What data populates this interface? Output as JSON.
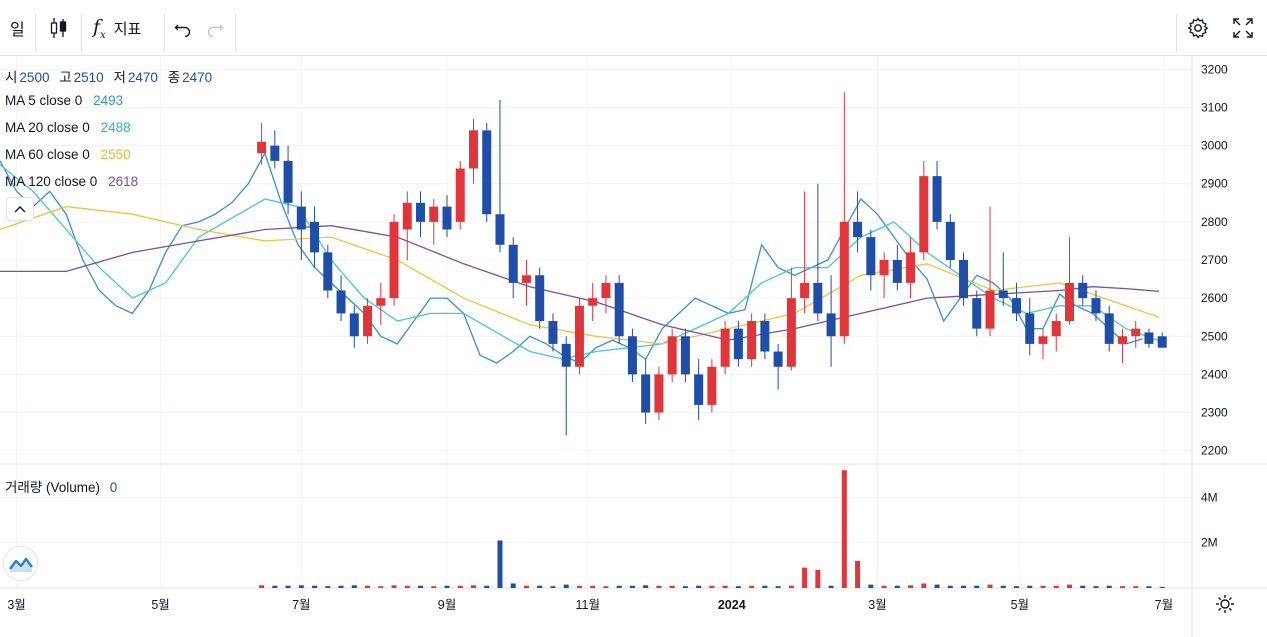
{
  "toolbar": {
    "interval": "일",
    "indicators_label": "지표"
  },
  "ohlc": {
    "open_label": "시",
    "open": "2500",
    "high_label": "고",
    "high": "2510",
    "low_label": "저",
    "low": "2470",
    "close_label": "종",
    "close": "2470"
  },
  "ma_legends": [
    {
      "label": "MA 5 close 0",
      "value": "2493",
      "color": "#3a8fd1"
    },
    {
      "label": "MA 20 close 0",
      "value": "2488",
      "color": "#2ab3d6"
    },
    {
      "label": "MA 60 close 0",
      "value": "2550",
      "color": "#e8b73a"
    },
    {
      "label": "MA 120 close 0",
      "value": "2618",
      "color": "#7e4fa1"
    }
  ],
  "volume_legend": {
    "label": "거래량 (Volume)",
    "value": "0"
  },
  "colors": {
    "up": "#e0353b",
    "down": "#1f4da8",
    "ma5": "#3a8fd1",
    "ma20": "#4cc3dd",
    "ma60": "#f0c43c",
    "ma120": "#7e4fa1",
    "grid": "#f0f3fa"
  },
  "chart_data": {
    "type": "line",
    "title": "",
    "price_axis": {
      "ticks": [
        2200,
        2300,
        2400,
        2500,
        2600,
        2700,
        2800,
        2900,
        3000,
        3100,
        3200
      ],
      "ylim": [
        2165,
        3235
      ]
    },
    "volume_axis": {
      "ticks": [
        "2M",
        "4M"
      ],
      "tick_values": [
        2,
        4
      ],
      "ylim": [
        0,
        5.3
      ]
    },
    "x_ticks": [
      "3월",
      "5월",
      "7월",
      "9월",
      "11월",
      "2024",
      "3월",
      "5월",
      "7월"
    ],
    "x_tick_positions": [
      1,
      9.7,
      18.2,
      27,
      35.5,
      44.2,
      53,
      61.6,
      70.3
    ],
    "xlim": [
      0,
      72
    ],
    "series": [
      {
        "name": "MA 5",
        "x": [
          0,
          1,
          2,
          3,
          4,
          5,
          6,
          7,
          8,
          9,
          10,
          11,
          12,
          13,
          14,
          15,
          16,
          17,
          18,
          19,
          20,
          21,
          22,
          23,
          24,
          25,
          26,
          27,
          28,
          29,
          30,
          31,
          32,
          33,
          34,
          35,
          36,
          37,
          38,
          39,
          40,
          41,
          42,
          43,
          44,
          45,
          46,
          47,
          48,
          49,
          50,
          51,
          52,
          53,
          54,
          55,
          56,
          57,
          58,
          59,
          60,
          61,
          62,
          63,
          64,
          65,
          66,
          67,
          68,
          69
        ],
        "y": [
          2960,
          2880,
          2840,
          2880,
          2820,
          2700,
          2620,
          2580,
          2560,
          2620,
          2720,
          2790,
          2800,
          2820,
          2850,
          2900,
          2980,
          2850,
          2740,
          2680,
          2640,
          2600,
          2560,
          2500,
          2480,
          2540,
          2600,
          2600,
          2560,
          2450,
          2430,
          2460,
          2500,
          2480,
          2450,
          2430,
          2470,
          2490,
          2470,
          2440,
          2520,
          2560,
          2600,
          2580,
          2560,
          2570,
          2740,
          2680,
          2660,
          2680,
          2700,
          2780,
          2860,
          2820,
          2760,
          2700,
          2650,
          2540,
          2600,
          2660,
          2640,
          2600,
          2520,
          2520,
          2610,
          2580,
          2560,
          2520,
          2480,
          2493
        ]
      },
      {
        "name": "MA 20",
        "x": [
          0,
          2,
          4,
          6,
          8,
          10,
          12,
          14,
          16,
          18,
          20,
          22,
          24,
          26,
          28,
          30,
          32,
          34,
          36,
          38,
          40,
          42,
          44,
          46,
          48,
          50,
          52,
          54,
          56,
          58,
          60,
          62,
          64,
          66,
          68,
          70
        ],
        "y": [
          2950,
          2880,
          2780,
          2680,
          2600,
          2640,
          2760,
          2810,
          2860,
          2840,
          2700,
          2600,
          2540,
          2560,
          2560,
          2510,
          2460,
          2440,
          2460,
          2470,
          2480,
          2520,
          2560,
          2640,
          2680,
          2680,
          2760,
          2800,
          2720,
          2660,
          2600,
          2560,
          2580,
          2580,
          2520,
          2488
        ]
      },
      {
        "name": "MA 60",
        "x": [
          0,
          4,
          8,
          12,
          16,
          20,
          24,
          28,
          32,
          36,
          40,
          44,
          48,
          52,
          56,
          60,
          64,
          68,
          70
        ],
        "y": [
          2780,
          2840,
          2820,
          2780,
          2750,
          2760,
          2700,
          2600,
          2530,
          2500,
          2480,
          2520,
          2560,
          2660,
          2690,
          2620,
          2640,
          2580,
          2550
        ]
      },
      {
        "name": "MA 120",
        "x": [
          0,
          4,
          8,
          12,
          16,
          20,
          24,
          28,
          32,
          36,
          40,
          44,
          48,
          52,
          56,
          60,
          64,
          66,
          68,
          70
        ],
        "y": [
          2670,
          2670,
          2720,
          2750,
          2780,
          2790,
          2760,
          2690,
          2630,
          2590,
          2530,
          2490,
          2520,
          2560,
          2600,
          2610,
          2620,
          2630,
          2625,
          2618
        ]
      }
    ],
    "candles": [
      {
        "x": 0.3,
        "o": 2980,
        "h": 3060,
        "l": 2950,
        "c": 3010
      },
      {
        "x": 1.1,
        "o": 3000,
        "h": 3040,
        "l": 2940,
        "c": 2960
      },
      {
        "x": 1.9,
        "o": 2960,
        "h": 3000,
        "l": 2820,
        "c": 2850
      },
      {
        "x": 2.7,
        "o": 2840,
        "h": 2880,
        "l": 2700,
        "c": 2780
      },
      {
        "x": 3.5,
        "o": 2800,
        "h": 2840,
        "l": 2680,
        "c": 2720
      },
      {
        "x": 4.3,
        "o": 2720,
        "h": 2740,
        "l": 2600,
        "c": 2620
      },
      {
        "x": 5.1,
        "o": 2620,
        "h": 2660,
        "l": 2540,
        "c": 2560
      },
      {
        "x": 5.9,
        "o": 2560,
        "h": 2580,
        "l": 2470,
        "c": 2500
      },
      {
        "x": 6.7,
        "o": 2500,
        "h": 2600,
        "l": 2480,
        "c": 2580
      },
      {
        "x": 7.5,
        "o": 2580,
        "h": 2640,
        "l": 2530,
        "c": 2600
      },
      {
        "x": 8.3,
        "o": 2600,
        "h": 2820,
        "l": 2580,
        "c": 2800
      },
      {
        "x": 9.1,
        "o": 2780,
        "h": 2880,
        "l": 2700,
        "c": 2850
      },
      {
        "x": 9.9,
        "o": 2850,
        "h": 2880,
        "l": 2760,
        "c": 2800
      },
      {
        "x": 10.7,
        "o": 2800,
        "h": 2860,
        "l": 2740,
        "c": 2840
      },
      {
        "x": 11.5,
        "o": 2840,
        "h": 2870,
        "l": 2760,
        "c": 2780
      },
      {
        "x": 12.3,
        "o": 2800,
        "h": 2960,
        "l": 2780,
        "c": 2940
      },
      {
        "x": 13.1,
        "o": 2940,
        "h": 3070,
        "l": 2900,
        "c": 3040
      },
      {
        "x": 13.9,
        "o": 3040,
        "h": 3060,
        "l": 2800,
        "c": 2820
      },
      {
        "x": 14.7,
        "o": 2820,
        "h": 3120,
        "l": 2720,
        "c": 2740
      },
      {
        "x": 15.5,
        "o": 2740,
        "h": 2760,
        "l": 2600,
        "c": 2640
      },
      {
        "x": 16.3,
        "o": 2640,
        "h": 2700,
        "l": 2580,
        "c": 2660
      },
      {
        "x": 17.1,
        "o": 2660,
        "h": 2680,
        "l": 2520,
        "c": 2540
      },
      {
        "x": 17.9,
        "o": 2540,
        "h": 2560,
        "l": 2460,
        "c": 2480
      },
      {
        "x": 18.7,
        "o": 2480,
        "h": 2500,
        "l": 2240,
        "c": 2420
      },
      {
        "x": 19.5,
        "o": 2420,
        "h": 2600,
        "l": 2400,
        "c": 2580
      },
      {
        "x": 20.3,
        "o": 2580,
        "h": 2640,
        "l": 2540,
        "c": 2600
      },
      {
        "x": 21.1,
        "o": 2600,
        "h": 2660,
        "l": 2560,
        "c": 2640
      },
      {
        "x": 21.9,
        "o": 2640,
        "h": 2660,
        "l": 2480,
        "c": 2500
      },
      {
        "x": 22.7,
        "o": 2500,
        "h": 2520,
        "l": 2380,
        "c": 2400
      },
      {
        "x": 23.5,
        "o": 2400,
        "h": 2440,
        "l": 2270,
        "c": 2300
      },
      {
        "x": 24.3,
        "o": 2300,
        "h": 2420,
        "l": 2280,
        "c": 2400
      },
      {
        "x": 25.1,
        "o": 2400,
        "h": 2520,
        "l": 2380,
        "c": 2500
      },
      {
        "x": 25.9,
        "o": 2500,
        "h": 2520,
        "l": 2380,
        "c": 2400
      },
      {
        "x": 26.7,
        "o": 2400,
        "h": 2440,
        "l": 2280,
        "c": 2320
      },
      {
        "x": 27.5,
        "o": 2320,
        "h": 2440,
        "l": 2300,
        "c": 2420
      },
      {
        "x": 28.3,
        "o": 2420,
        "h": 2540,
        "l": 2400,
        "c": 2520
      },
      {
        "x": 29.1,
        "o": 2520,
        "h": 2540,
        "l": 2420,
        "c": 2440
      },
      {
        "x": 29.9,
        "o": 2440,
        "h": 2560,
        "l": 2420,
        "c": 2540
      },
      {
        "x": 30.7,
        "o": 2540,
        "h": 2560,
        "l": 2440,
        "c": 2460
      },
      {
        "x": 31.5,
        "o": 2460,
        "h": 2480,
        "l": 2360,
        "c": 2420
      },
      {
        "x": 32.3,
        "o": 2420,
        "h": 2680,
        "l": 2410,
        "c": 2600
      },
      {
        "x": 33.1,
        "o": 2600,
        "h": 2880,
        "l": 2560,
        "c": 2640
      },
      {
        "x": 33.9,
        "o": 2640,
        "h": 2900,
        "l": 2540,
        "c": 2560
      },
      {
        "x": 34.7,
        "o": 2560,
        "h": 2660,
        "l": 2420,
        "c": 2500
      },
      {
        "x": 35.5,
        "o": 2500,
        "h": 3140,
        "l": 2480,
        "c": 2800
      },
      {
        "x": 36.3,
        "o": 2800,
        "h": 2880,
        "l": 2720,
        "c": 2760
      },
      {
        "x": 37.1,
        "o": 2760,
        "h": 2780,
        "l": 2620,
        "c": 2660
      },
      {
        "x": 37.9,
        "o": 2660,
        "h": 2720,
        "l": 2600,
        "c": 2700
      },
      {
        "x": 38.7,
        "o": 2700,
        "h": 2740,
        "l": 2620,
        "c": 2640
      },
      {
        "x": 39.5,
        "o": 2640,
        "h": 2760,
        "l": 2600,
        "c": 2720
      },
      {
        "x": 40.3,
        "o": 2720,
        "h": 2960,
        "l": 2700,
        "c": 2920
      },
      {
        "x": 41.1,
        "o": 2920,
        "h": 2960,
        "l": 2780,
        "c": 2800
      },
      {
        "x": 41.9,
        "o": 2800,
        "h": 2820,
        "l": 2680,
        "c": 2700
      },
      {
        "x": 42.7,
        "o": 2700,
        "h": 2720,
        "l": 2580,
        "c": 2600
      },
      {
        "x": 43.5,
        "o": 2600,
        "h": 2620,
        "l": 2500,
        "c": 2520
      },
      {
        "x": 44.3,
        "o": 2520,
        "h": 2840,
        "l": 2500,
        "c": 2620
      },
      {
        "x": 45.1,
        "o": 2620,
        "h": 2720,
        "l": 2580,
        "c": 2600
      },
      {
        "x": 45.9,
        "o": 2600,
        "h": 2640,
        "l": 2540,
        "c": 2560
      },
      {
        "x": 46.7,
        "o": 2560,
        "h": 2600,
        "l": 2450,
        "c": 2480
      },
      {
        "x": 47.5,
        "o": 2480,
        "h": 2520,
        "l": 2440,
        "c": 2500
      },
      {
        "x": 48.3,
        "o": 2500,
        "h": 2560,
        "l": 2460,
        "c": 2540
      },
      {
        "x": 49.1,
        "o": 2540,
        "h": 2760,
        "l": 2530,
        "c": 2640
      },
      {
        "x": 49.9,
        "o": 2640,
        "h": 2660,
        "l": 2580,
        "c": 2600
      },
      {
        "x": 50.7,
        "o": 2600,
        "h": 2620,
        "l": 2540,
        "c": 2560
      },
      {
        "x": 51.5,
        "o": 2560,
        "h": 2580,
        "l": 2460,
        "c": 2480
      },
      {
        "x": 52.3,
        "o": 2480,
        "h": 2520,
        "l": 2430,
        "c": 2500
      },
      {
        "x": 53.1,
        "o": 2500,
        "h": 2540,
        "l": 2470,
        "c": 2520
      },
      {
        "x": 53.9,
        "o": 2510,
        "h": 2520,
        "l": 2470,
        "c": 2480
      },
      {
        "x": 54.7,
        "o": 2500,
        "h": 2510,
        "l": 2470,
        "c": 2470
      }
    ],
    "volume": {
      "x": [
        0.3,
        1.1,
        1.9,
        2.7,
        3.5,
        4.3,
        5.1,
        5.9,
        6.7,
        7.5,
        8.3,
        9.1,
        9.9,
        10.7,
        11.5,
        12.3,
        13.1,
        13.9,
        14.7,
        15.5,
        16.3,
        17.1,
        17.9,
        18.7,
        19.5,
        20.3,
        21.1,
        21.9,
        22.7,
        23.5,
        24.3,
        25.1,
        25.9,
        26.7,
        27.5,
        28.3,
        29.1,
        29.9,
        30.7,
        31.5,
        32.3,
        33.1,
        33.9,
        34.7,
        35.5,
        36.3,
        37.1,
        37.9,
        38.7,
        39.5,
        40.3,
        41.1,
        41.9,
        42.7,
        43.5,
        44.3,
        45.1,
        45.9,
        46.7,
        47.5,
        48.3,
        49.1,
        49.9,
        50.7,
        51.5,
        52.3,
        53.1,
        53.9,
        54.7
      ],
      "values": [
        0.12,
        0.1,
        0.1,
        0.12,
        0.1,
        0.08,
        0.1,
        0.12,
        0.1,
        0.08,
        0.12,
        0.1,
        0.1,
        0.08,
        0.1,
        0.1,
        0.12,
        0.1,
        2.1,
        0.2,
        0.1,
        0.1,
        0.08,
        0.15,
        0.1,
        0.1,
        0.08,
        0.1,
        0.1,
        0.12,
        0.1,
        0.1,
        0.08,
        0.1,
        0.1,
        0.1,
        0.08,
        0.1,
        0.1,
        0.08,
        0.1,
        0.9,
        0.8,
        0.1,
        5.2,
        1.2,
        0.15,
        0.1,
        0.1,
        0.12,
        0.2,
        0.15,
        0.1,
        0.1,
        0.1,
        0.15,
        0.1,
        0.08,
        0.1,
        0.1,
        0.1,
        0.15,
        0.1,
        0.08,
        0.1,
        0.08,
        0.08,
        0.08,
        0.05
      ],
      "up": [
        true,
        false,
        false,
        false,
        false,
        false,
        false,
        false,
        true,
        true,
        true,
        true,
        false,
        true,
        false,
        true,
        true,
        false,
        false,
        false,
        true,
        false,
        false,
        false,
        true,
        true,
        true,
        false,
        false,
        false,
        true,
        true,
        false,
        false,
        true,
        true,
        false,
        true,
        false,
        false,
        true,
        true,
        true,
        false,
        true,
        true,
        false,
        true,
        false,
        true,
        true,
        false,
        false,
        false,
        false,
        true,
        false,
        false,
        false,
        true,
        true,
        true,
        false,
        false,
        false,
        true,
        true,
        false,
        false
      ]
    }
  }
}
